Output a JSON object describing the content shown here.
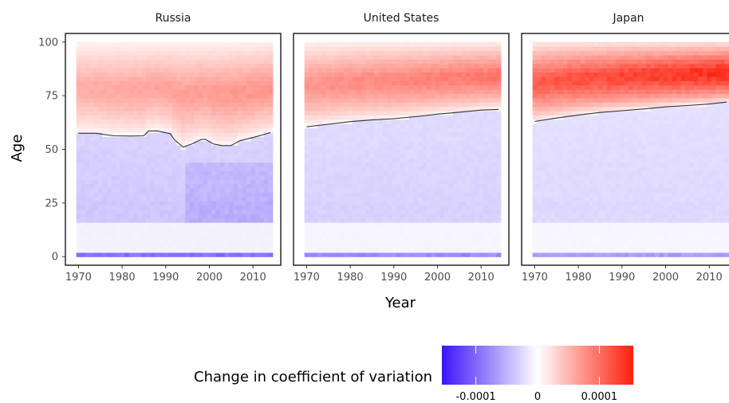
{
  "chart_data": {
    "type": "heatmap",
    "xlabel": "Year",
    "ylabel": "Age",
    "x_range": [
      1970,
      2014
    ],
    "y_range": [
      0,
      100
    ],
    "xlim": [
      1967,
      2016
    ],
    "ylim": [
      -4,
      104
    ],
    "x_ticks": [
      1970,
      1980,
      1990,
      2000,
      2010
    ],
    "y_ticks": [
      0,
      25,
      50,
      75,
      100
    ],
    "panels": [
      {
        "title": "Russia",
        "contour_line": {
          "x": [
            1970,
            1974,
            1978,
            1982,
            1985,
            1986,
            1988,
            1991,
            1992,
            1994,
            1996,
            1998,
            1999,
            2001,
            2003,
            2005,
            2007,
            2010,
            2014
          ],
          "y": [
            57.5,
            57.5,
            56.3,
            56.2,
            56.3,
            58.5,
            58.6,
            57.3,
            54.5,
            51.0,
            52.5,
            54.5,
            54.7,
            52.5,
            51.7,
            51.8,
            54.0,
            55.5,
            57.8
          ]
        }
      },
      {
        "title": "United States",
        "contour_line": {
          "x": [
            1970,
            1975,
            1980,
            1985,
            1990,
            1995,
            2000,
            2005,
            2010,
            2014
          ],
          "y": [
            60.5,
            61.7,
            62.9,
            63.7,
            64.3,
            65.2,
            66.4,
            67.3,
            68.3,
            68.6
          ]
        }
      },
      {
        "title": "Japan",
        "contour_line": {
          "x": [
            1970,
            1975,
            1980,
            1985,
            1990,
            1995,
            2000,
            2005,
            2010,
            2014
          ],
          "y": [
            63.0,
            64.6,
            66.0,
            67.2,
            68.0,
            68.8,
            69.8,
            70.4,
            71.1,
            72.0
          ]
        }
      }
    ],
    "legend": {
      "title": "Change in coefficient of variation",
      "position": "bottom",
      "colors": [
        "#3b14f8",
        "#ffffff",
        "#fd1f0b"
      ],
      "tick_values": [
        -0.0001,
        0,
        0.0001
      ],
      "tick_labels": [
        "-0.0001",
        "0",
        "0.0001"
      ],
      "range": [
        -0.000155,
        0.000155
      ]
    },
    "grid": false
  }
}
